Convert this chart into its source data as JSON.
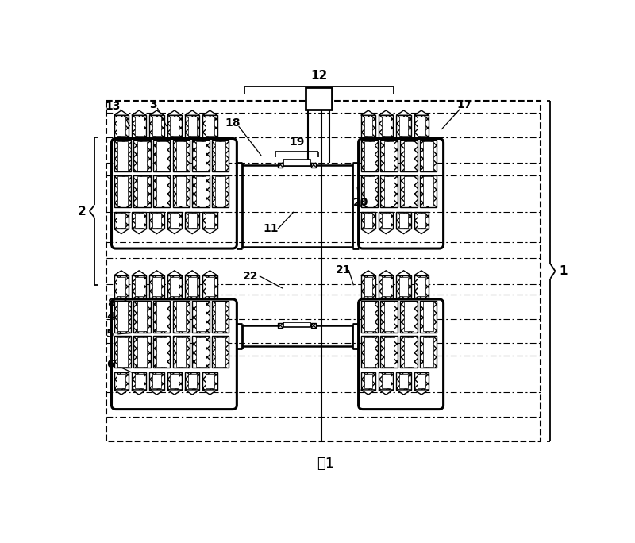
{
  "fig_width": 8.0,
  "fig_height": 6.84,
  "bg_color": "#ffffff",
  "line_color": "#000000",
  "title": "图1",
  "title_fontsize": 13
}
